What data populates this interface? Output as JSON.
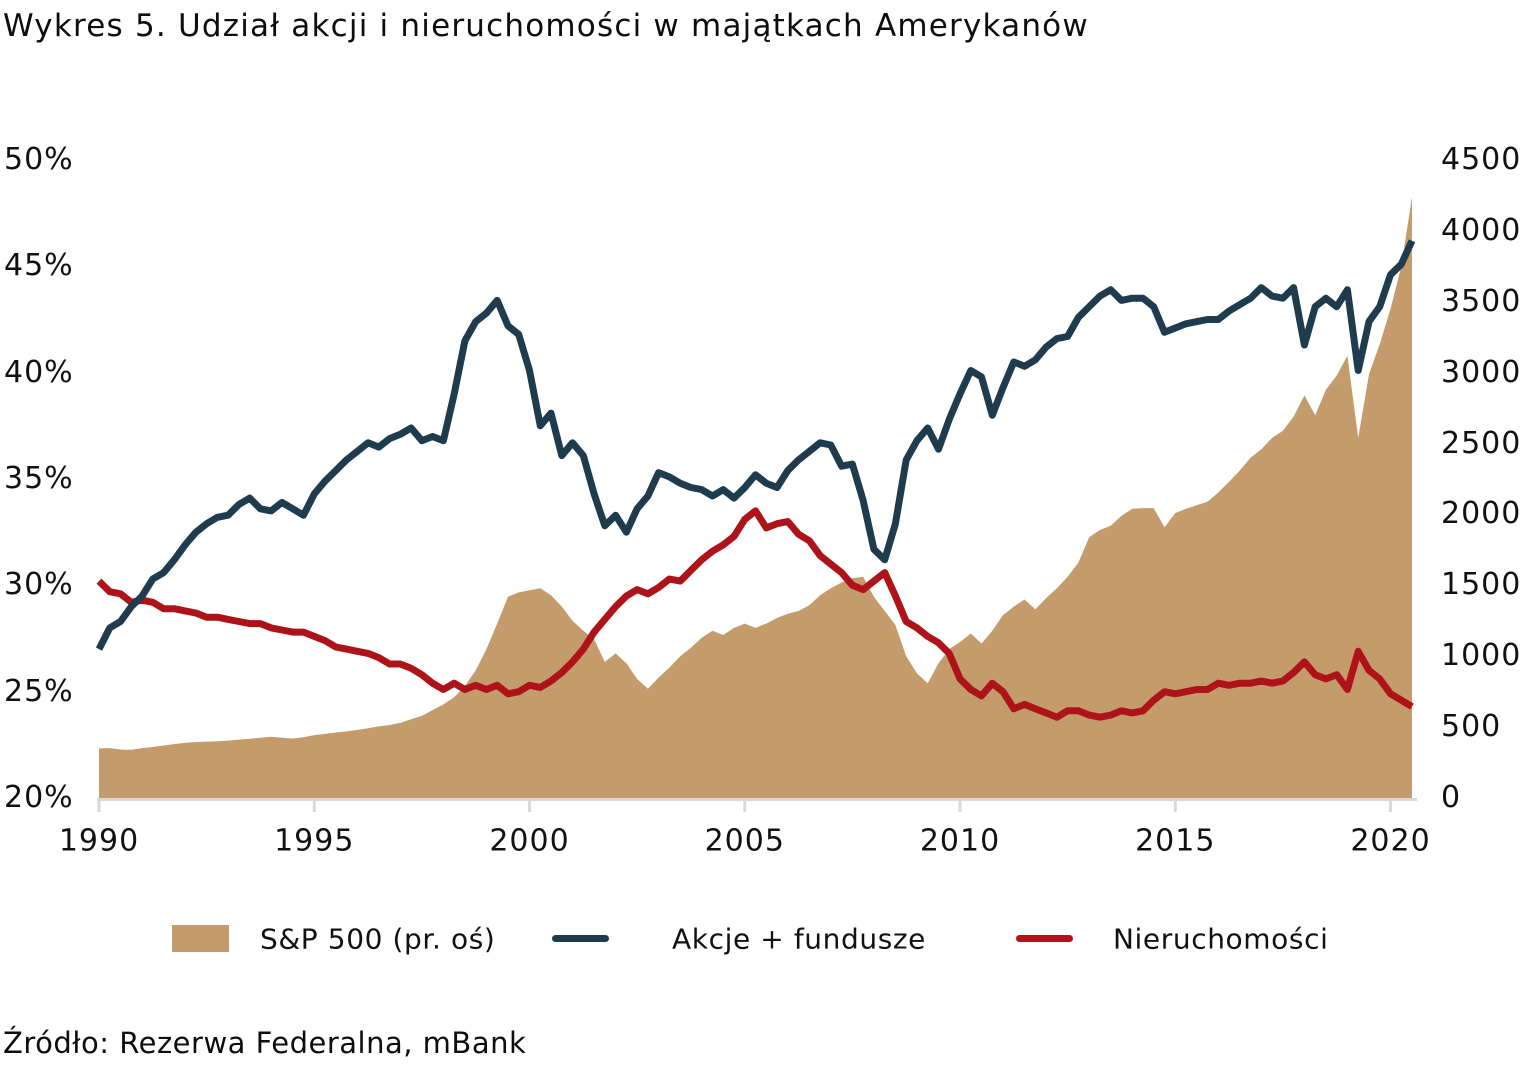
{
  "title": "Wykres 5. Udział akcji i nieruchomości w majątkach Amerykanów",
  "source": "Źródło: Rezerwa Federalna, mBank",
  "colors": {
    "sp500_area": "#c49c6b",
    "akcje_line": "#1f3c4e",
    "nieruchomosci_line": "#ae1319",
    "axis": "#d9d9d9",
    "text": "#0d0d0d",
    "background": "#ffffff"
  },
  "legend": [
    {
      "label": "S&P 500 (pr. oś)",
      "swatch": "area",
      "color": "#c49c6b"
    },
    {
      "label": "Akcje + fundusze",
      "swatch": "line",
      "color": "#1f3c4e"
    },
    {
      "label": "Nieruchomości",
      "swatch": "line",
      "color": "#ae1319"
    }
  ],
  "chart_data": {
    "type": "combo-area-line",
    "title": "Wykres 5. Udział akcji i nieruchomości w majątkach Amerykanów",
    "legend_position": "bottom",
    "grid": false,
    "x_axis": {
      "tick_labels": [
        "1990",
        "1995",
        "2000",
        "2005",
        "2010",
        "2015",
        "2020"
      ],
      "tick_values": [
        1990,
        1995,
        2000,
        2005,
        2010,
        2015,
        2020
      ],
      "range": [
        1990,
        2020.75
      ]
    },
    "left_axis": {
      "tick_labels": [
        "50%",
        "45%",
        "40%",
        "35%",
        "30%",
        "25%",
        "20%"
      ],
      "tick_values": [
        50,
        45,
        40,
        35,
        30,
        25,
        20
      ],
      "range": [
        20,
        50
      ],
      "unit": "%"
    },
    "right_axis": {
      "tick_labels": [
        "4500",
        "4000",
        "3500",
        "3000",
        "2500",
        "2000",
        "1500",
        "1000",
        "500",
        "0"
      ],
      "tick_values": [
        4500,
        4000,
        3500,
        3000,
        2500,
        2000,
        1500,
        1000,
        500,
        0
      ],
      "range": [
        0,
        4500
      ]
    },
    "x_start": 1990.0,
    "x_step": 0.25,
    "series": [
      {
        "name": "S&P 500 (pr. oś)",
        "type": "area",
        "axis": "right",
        "color": "#c49c6b",
        "values": [
          350,
          352,
          342,
          340,
          352,
          360,
          370,
          380,
          390,
          395,
          398,
          400,
          405,
          412,
          418,
          425,
          432,
          425,
          420,
          428,
          444,
          452,
          462,
          470,
          480,
          492,
          505,
          515,
          530,
          555,
          580,
          620,
          660,
          710,
          790,
          900,
          1050,
          1230,
          1420,
          1450,
          1465,
          1480,
          1430,
          1350,
          1250,
          1180,
          1120,
          960,
          1020,
          950,
          840,
          770,
          850,
          920,
          1000,
          1060,
          1130,
          1180,
          1150,
          1200,
          1230,
          1200,
          1230,
          1270,
          1300,
          1320,
          1360,
          1430,
          1480,
          1520,
          1550,
          1560,
          1420,
          1320,
          1220,
          1000,
          880,
          810,
          950,
          1050,
          1100,
          1160,
          1090,
          1180,
          1290,
          1350,
          1400,
          1330,
          1410,
          1480,
          1560,
          1660,
          1840,
          1890,
          1920,
          1990,
          2040,
          2045,
          2045,
          1910,
          2010,
          2040,
          2065,
          2090,
          2155,
          2230,
          2310,
          2400,
          2460,
          2540,
          2590,
          2690,
          2840,
          2700,
          2880,
          2980,
          3120,
          2540,
          2990,
          3200,
          3450,
          3750,
          4240
        ]
      },
      {
        "name": "Akcje + fundusze",
        "type": "line",
        "axis": "left",
        "color": "#1f3c4e",
        "values": [
          27.0,
          28.0,
          28.3,
          29.0,
          29.5,
          30.3,
          30.6,
          31.2,
          31.9,
          32.5,
          32.9,
          33.2,
          33.3,
          33.8,
          34.1,
          33.6,
          33.5,
          33.9,
          33.6,
          33.3,
          34.3,
          34.9,
          35.4,
          35.9,
          36.3,
          36.7,
          36.5,
          36.9,
          37.1,
          37.4,
          36.8,
          37.0,
          36.8,
          39.0,
          41.5,
          42.4,
          42.8,
          43.4,
          42.2,
          41.8,
          40.1,
          37.5,
          38.1,
          36.1,
          36.7,
          36.1,
          34.3,
          32.8,
          33.3,
          32.5,
          33.6,
          34.2,
          35.3,
          35.1,
          34.8,
          34.6,
          34.5,
          34.2,
          34.5,
          34.1,
          34.6,
          35.2,
          34.8,
          34.6,
          35.4,
          35.9,
          36.3,
          36.7,
          36.6,
          35.6,
          35.7,
          34.0,
          31.7,
          31.2,
          32.9,
          35.9,
          36.8,
          37.4,
          36.4,
          37.8,
          39.0,
          40.1,
          39.8,
          38.0,
          39.3,
          40.5,
          40.3,
          40.6,
          41.2,
          41.6,
          41.7,
          42.6,
          43.1,
          43.6,
          43.9,
          43.4,
          43.5,
          43.5,
          43.1,
          41.9,
          42.1,
          42.3,
          42.4,
          42.5,
          42.5,
          42.9,
          43.2,
          43.5,
          44.0,
          43.6,
          43.5,
          44.0,
          41.3,
          43.1,
          43.5,
          43.1,
          43.9,
          40.1,
          42.4,
          43.1,
          44.6,
          45.1,
          46.2
        ]
      },
      {
        "name": "Nieruchomości",
        "type": "line",
        "axis": "left",
        "color": "#ae1319",
        "values": [
          30.2,
          29.7,
          29.6,
          29.2,
          29.3,
          29.2,
          28.9,
          28.9,
          28.8,
          28.7,
          28.5,
          28.5,
          28.4,
          28.3,
          28.2,
          28.2,
          28.0,
          27.9,
          27.8,
          27.8,
          27.6,
          27.4,
          27.1,
          27.0,
          26.9,
          26.8,
          26.6,
          26.3,
          26.3,
          26.1,
          25.8,
          25.4,
          25.1,
          25.4,
          25.1,
          25.3,
          25.1,
          25.3,
          24.9,
          25.0,
          25.3,
          25.2,
          25.5,
          25.9,
          26.4,
          27.0,
          27.8,
          28.4,
          29.0,
          29.5,
          29.8,
          29.6,
          29.9,
          30.3,
          30.2,
          30.7,
          31.2,
          31.6,
          31.9,
          32.3,
          33.1,
          33.5,
          32.7,
          32.9,
          33.0,
          32.4,
          32.1,
          31.4,
          31.0,
          30.6,
          30.0,
          29.8,
          30.2,
          30.6,
          29.5,
          28.3,
          28.0,
          27.6,
          27.3,
          26.8,
          25.6,
          25.1,
          24.8,
          25.4,
          25.0,
          24.2,
          24.4,
          24.2,
          24.0,
          23.8,
          24.1,
          24.1,
          23.9,
          23.8,
          23.9,
          24.1,
          24.0,
          24.1,
          24.6,
          25.0,
          24.9,
          25.0,
          25.1,
          25.1,
          25.4,
          25.3,
          25.4,
          25.4,
          25.5,
          25.4,
          25.5,
          25.9,
          26.4,
          25.8,
          25.6,
          25.8,
          25.1,
          26.9,
          26.0,
          25.6,
          24.9,
          24.6,
          24.3
        ]
      }
    ]
  }
}
